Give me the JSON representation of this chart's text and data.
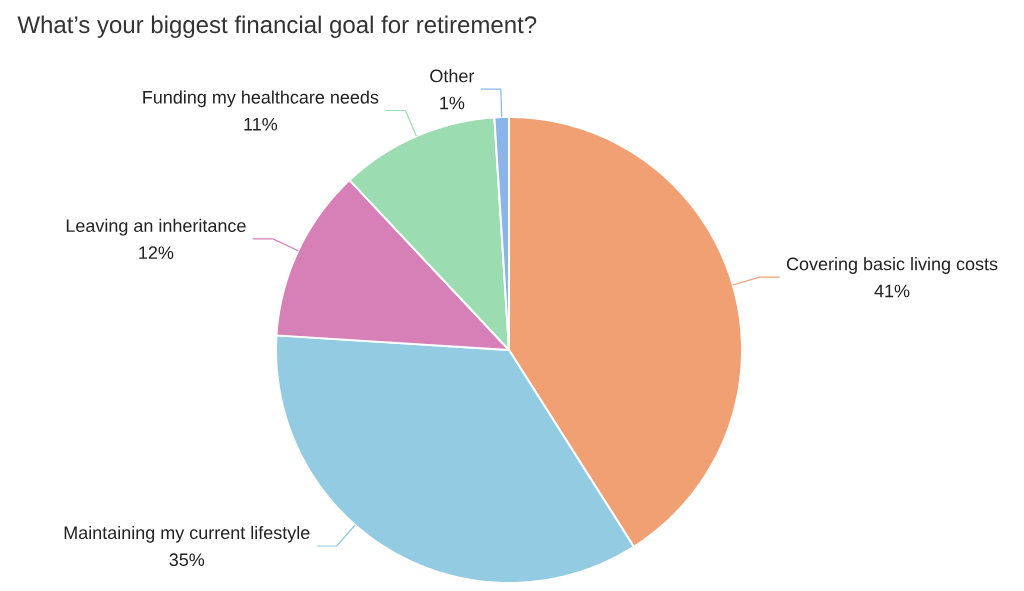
{
  "chart_data": {
    "type": "pie",
    "title": "What’s your biggest financial goal for retirement?",
    "categories": [
      "Covering basic living costs",
      "Maintaining my current lifestyle",
      "Leaving an inheritance",
      "Funding my healthcare needs",
      "Other"
    ],
    "values": [
      41,
      35,
      12,
      11,
      1
    ],
    "value_labels": [
      "41%",
      "35%",
      "12%",
      "11%",
      "1%"
    ],
    "colors": [
      "#f0a073",
      "#93cce2",
      "#d680b7",
      "#9bdcb0",
      "#8ab4ea"
    ]
  }
}
